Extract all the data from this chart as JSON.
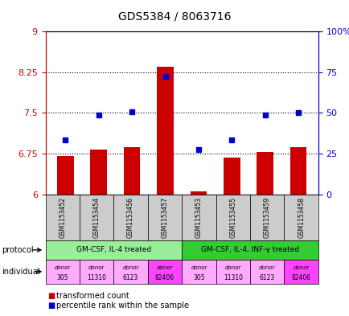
{
  "title": "GDS5384 / 8063716",
  "samples": [
    "GSM1153452",
    "GSM1153454",
    "GSM1153456",
    "GSM1153457",
    "GSM1153453",
    "GSM1153455",
    "GSM1153459",
    "GSM1153458"
  ],
  "bar_values": [
    6.7,
    6.82,
    6.87,
    8.35,
    6.05,
    6.68,
    6.78,
    6.87
  ],
  "bar_base": 6.0,
  "scatter_values": [
    7.0,
    7.47,
    7.52,
    8.17,
    6.82,
    7.0,
    7.47,
    7.5
  ],
  "ylim_left": [
    6.0,
    9.0
  ],
  "ylim_right": [
    0,
    100
  ],
  "yticks_left": [
    6.0,
    6.75,
    7.5,
    8.25,
    9.0
  ],
  "yticks_left_labels": [
    "6",
    "6.75",
    "7.5",
    "8.25",
    "9"
  ],
  "yticks_right": [
    0,
    25,
    50,
    75,
    100
  ],
  "yticks_right_labels": [
    "0",
    "25",
    "50",
    "75",
    "100%"
  ],
  "hlines": [
    6.75,
    7.5,
    8.25
  ],
  "bar_color": "#cc0000",
  "scatter_color": "#0000cc",
  "protocol_groups": [
    {
      "label": "GM-CSF, IL-4 treated",
      "start": 0,
      "end": 4,
      "color": "#99ee99"
    },
    {
      "label": "GM-CSF, IL-4, INF-γ treated",
      "start": 4,
      "end": 8,
      "color": "#33cc33"
    }
  ],
  "individual_donors": [
    {
      "label": "donor\n305",
      "color": "#ffaaff"
    },
    {
      "label": "donor\n11310",
      "color": "#ffaaff"
    },
    {
      "label": "donor\n6123",
      "color": "#ffaaff"
    },
    {
      "label": "donor\n82406",
      "color": "#ff44ff"
    },
    {
      "label": "donor\n305",
      "color": "#ffaaff"
    },
    {
      "label": "donor\n11310",
      "color": "#ffaaff"
    },
    {
      "label": "donor\n6123",
      "color": "#ffaaff"
    },
    {
      "label": "donor\n82406",
      "color": "#ff44ff"
    }
  ],
  "protocol_label": "protocol",
  "individual_label": "individual",
  "legend_bar_label": "transformed count",
  "legend_scatter_label": "percentile rank within the sample",
  "left_axis_color": "#cc0000",
  "right_axis_color": "#0000cc",
  "sample_box_color": "#cccccc",
  "bg_color": "#ffffff"
}
